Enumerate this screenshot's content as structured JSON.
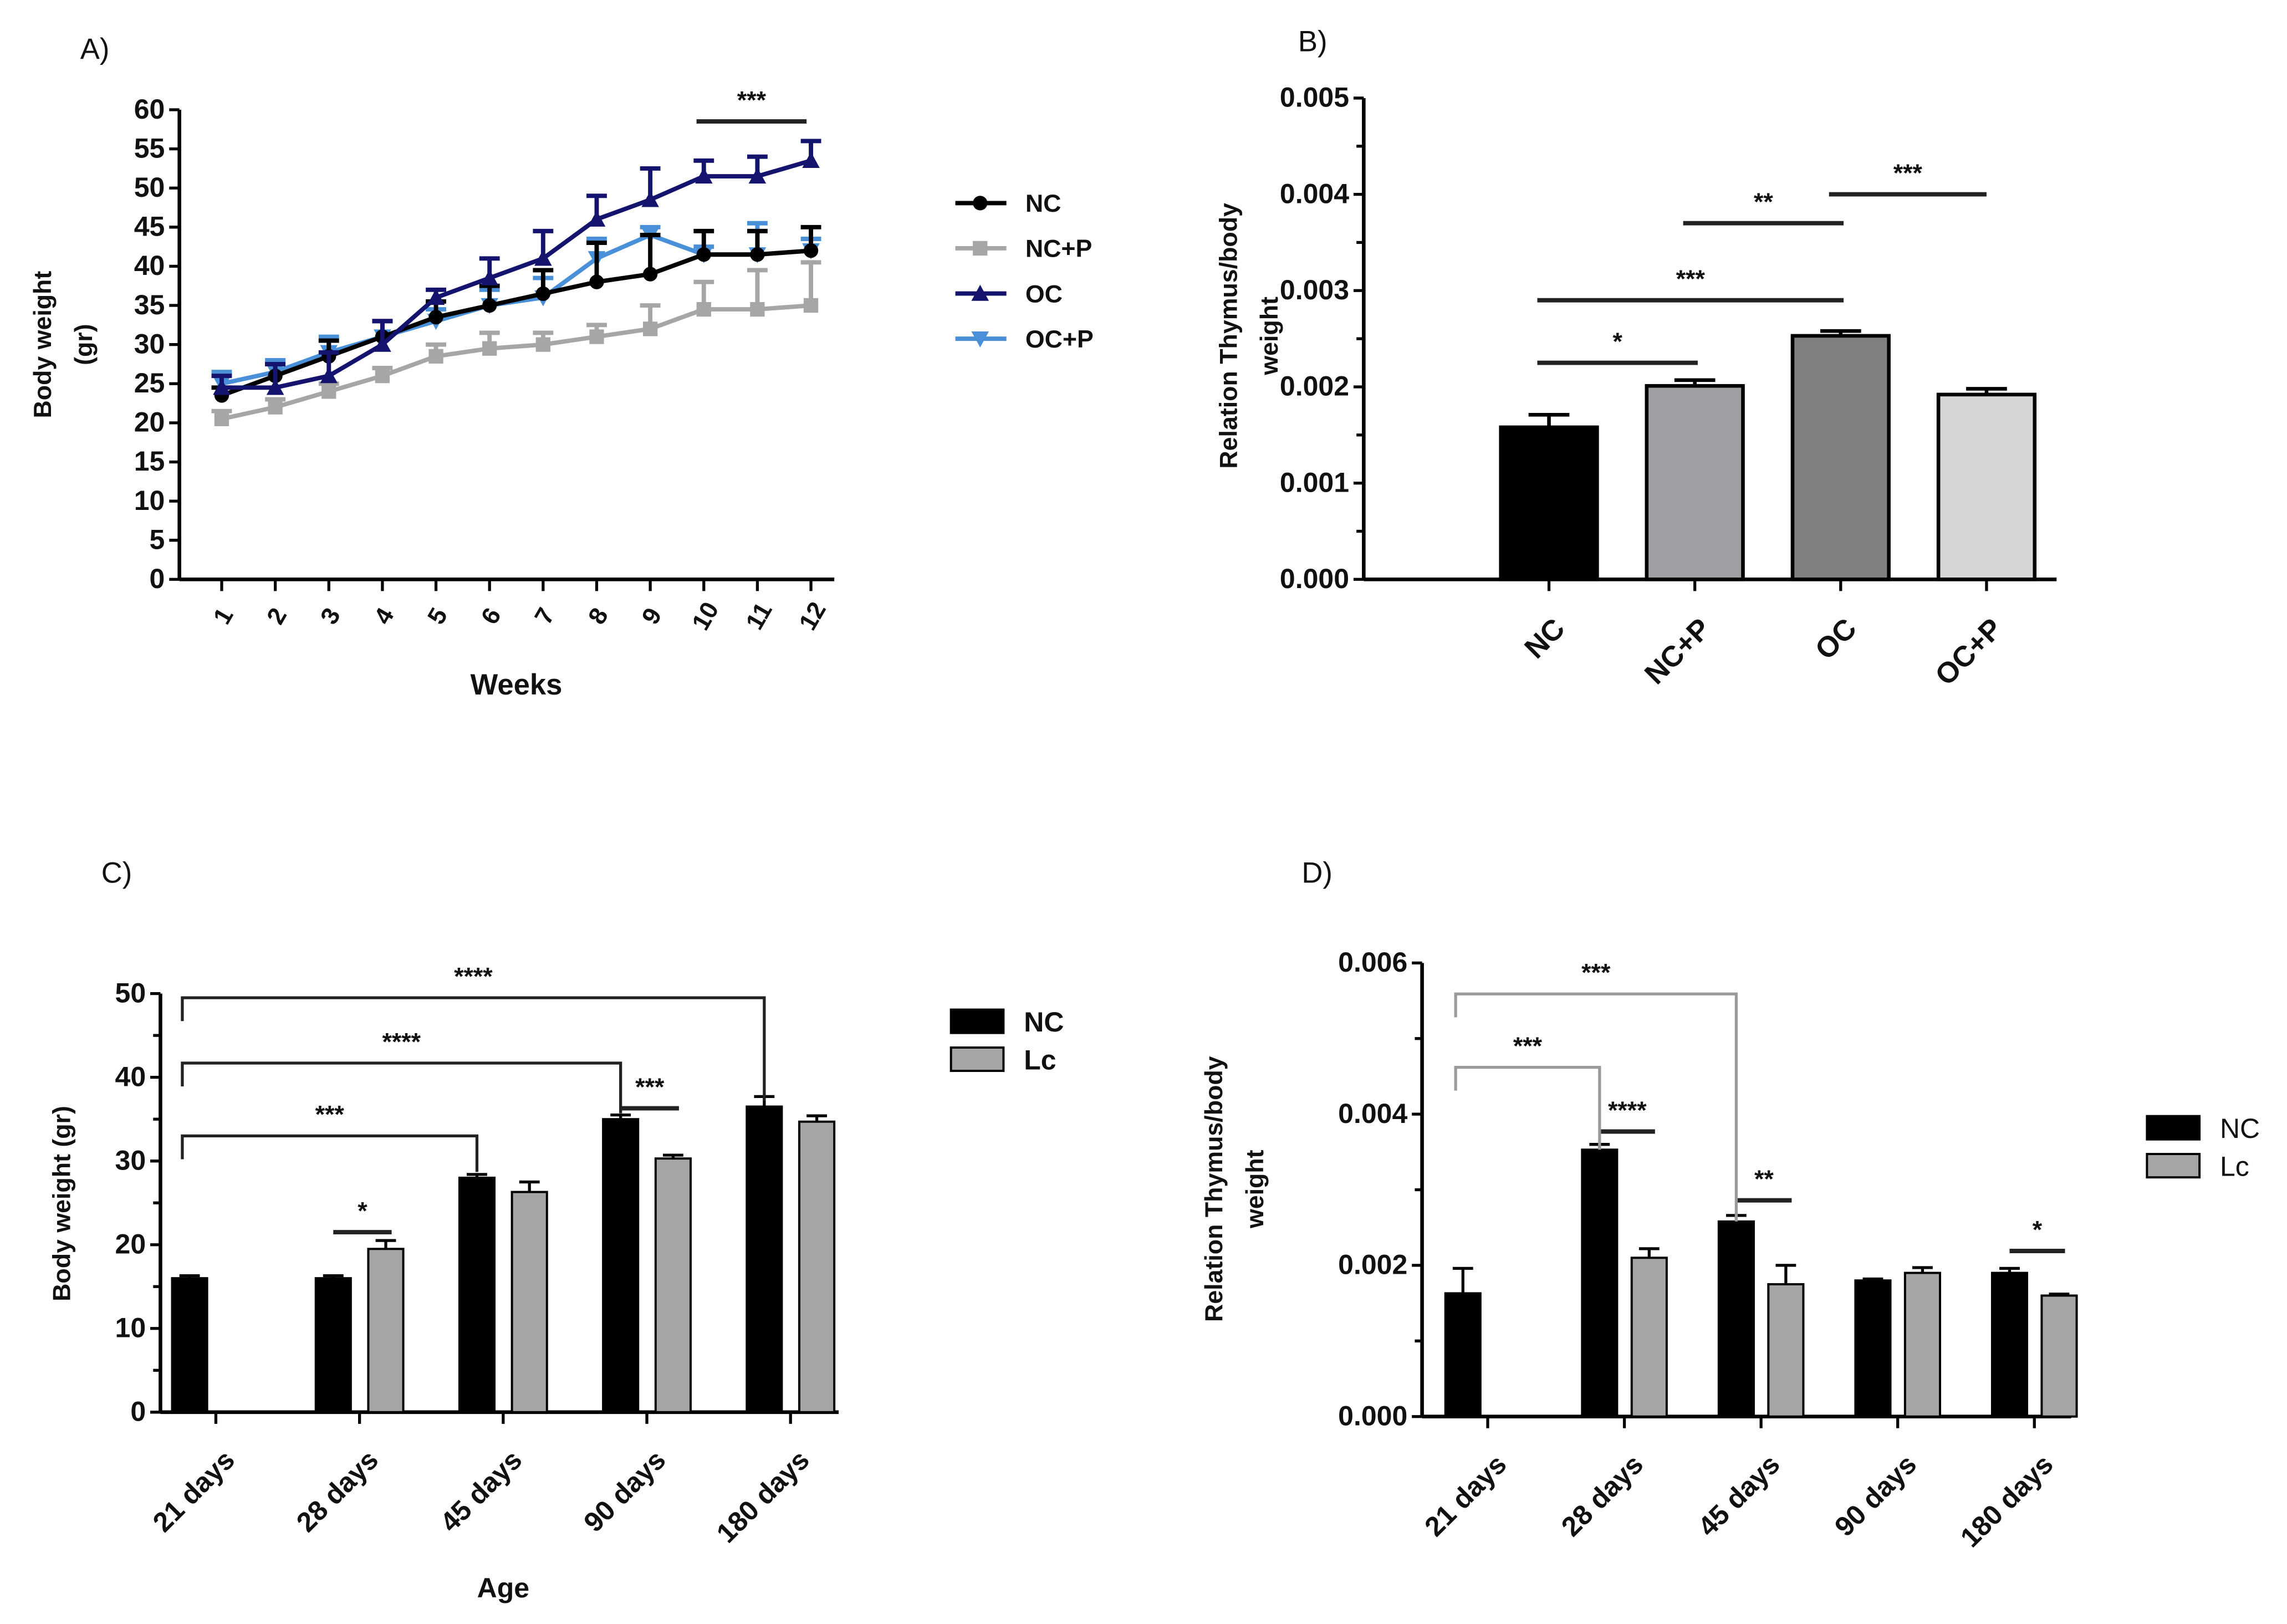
{
  "chart_data": [
    {
      "panel": "A)",
      "type": "line",
      "xlabel": "Weeks",
      "ylabel": [
        "Body weight",
        "(gr)"
      ],
      "x": [
        1,
        2,
        3,
        4,
        5,
        6,
        7,
        8,
        9,
        10,
        11,
        12
      ],
      "xticks": [
        "1",
        "2",
        "3",
        "4",
        "5",
        "6",
        "7",
        "8",
        "9",
        "10",
        "11",
        "12"
      ],
      "ylim": [
        0,
        60
      ],
      "yticks": [
        "0",
        "5",
        "10",
        "15",
        "20",
        "25",
        "30",
        "35",
        "40",
        "45",
        "50",
        "55",
        "60"
      ],
      "legend_position": "right",
      "series": [
        {
          "name": "NC",
          "color": "#000000",
          "marker": "circle",
          "values": [
            23.5,
            26,
            28.5,
            31,
            33.5,
            35,
            36.5,
            38,
            39,
            41.5,
            41.5,
            42
          ],
          "errors": [
            1,
            1.5,
            2,
            2,
            2,
            2.5,
            3,
            5,
            5,
            3,
            3,
            3
          ]
        },
        {
          "name": "NC+P",
          "color": "#a6a6a6",
          "marker": "square",
          "values": [
            20.5,
            22,
            24,
            26,
            28.5,
            29.5,
            30,
            31,
            32,
            34.5,
            34.5,
            35
          ],
          "errors": [
            1,
            1,
            1,
            1,
            1.5,
            2,
            1.5,
            1.5,
            3,
            3.5,
            5,
            5.5
          ]
        },
        {
          "name": "OC",
          "color": "#14146e",
          "marker": "triangle-up",
          "values": [
            24.5,
            24.5,
            26,
            30,
            36,
            38.5,
            41,
            46,
            48.5,
            51.5,
            51.5,
            53.5
          ],
          "errors": [
            1.5,
            3,
            3,
            3,
            1,
            2.5,
            3.5,
            3,
            4,
            2,
            2.5,
            2.5
          ]
        },
        {
          "name": "OC+P",
          "color": "#4a90d9",
          "marker": "triangle-down",
          "values": [
            25,
            26.5,
            29,
            31,
            33,
            35,
            36,
            41,
            44,
            41.5,
            41.5,
            42
          ],
          "errors": [
            1.5,
            1.5,
            2,
            2,
            1.5,
            2,
            2.5,
            2.5,
            1,
            1,
            4,
            1.5
          ]
        }
      ],
      "annotations": [
        {
          "label": "***",
          "from": 10,
          "to": 12
        }
      ]
    },
    {
      "panel": "B)",
      "type": "bar",
      "ylabel": [
        "Relation Thymus/body",
        "weight"
      ],
      "categories": [
        "NC",
        "NC+P",
        "OC",
        "OC+P"
      ],
      "values": [
        0.00158,
        0.00201,
        0.00253,
        0.00192
      ],
      "errors": [
        0.00013,
        6e-05,
        5e-05,
        6e-05
      ],
      "colors": [
        "#000000",
        "#a0a0a4",
        "#808080",
        "#d6d6d6"
      ],
      "ylim": [
        0,
        0.005
      ],
      "yticks": [
        "0.000",
        "0.001",
        "0.002",
        "0.003",
        "0.004",
        "0.005"
      ],
      "annotations": [
        {
          "label": "*",
          "from": 0,
          "to": 1,
          "level": 0.00225
        },
        {
          "label": "***",
          "from": 0,
          "to": 2,
          "level": 0.0029
        },
        {
          "label": "**",
          "from": 1,
          "to": 2,
          "level": 0.0037
        },
        {
          "label": "***",
          "from": 2,
          "to": 3,
          "level": 0.004
        }
      ]
    },
    {
      "panel": "C)",
      "type": "bar",
      "xlabel": "Age",
      "ylabel": [
        "Body weight (gr)"
      ],
      "categories": [
        "21 days",
        "28 days",
        "45 days",
        "90 days",
        "180 days"
      ],
      "ylim": [
        0,
        50
      ],
      "yticks": [
        "0",
        "10",
        "20",
        "30",
        "40",
        "50"
      ],
      "legend_position": "right",
      "series": [
        {
          "name": "NC",
          "color": "#000000",
          "values": [
            16,
            16,
            28,
            35,
            36.5
          ],
          "errors": [
            0.3,
            0.3,
            0.4,
            0.5,
            1.2
          ]
        },
        {
          "name": "Lc",
          "color": "#a6a6a6",
          "values": [
            null,
            19.5,
            26.3,
            30.3,
            34.7
          ],
          "errors": [
            null,
            1,
            1.2,
            0.4,
            0.7
          ]
        }
      ],
      "annotations": [
        {
          "label": "*",
          "from": [
            1,
            0
          ],
          "to": [
            1,
            1
          ],
          "level": 21.5,
          "kind": "line"
        },
        {
          "label": "***",
          "from": [
            3,
            0
          ],
          "to": [
            3,
            1
          ],
          "level": 36.3,
          "kind": "line"
        },
        {
          "label": "***",
          "from": [
            0,
            0
          ],
          "to": [
            2,
            0
          ],
          "level": 33,
          "kind": "bracket"
        },
        {
          "label": "****",
          "from": [
            0,
            0
          ],
          "to": [
            3,
            0
          ],
          "level": 41.7,
          "kind": "bracket"
        },
        {
          "label": "****",
          "from": [
            0,
            0
          ],
          "to": [
            4,
            0
          ],
          "level": 49.5,
          "kind": "bracket"
        }
      ]
    },
    {
      "panel": "D)",
      "type": "bar",
      "ylabel": [
        "Relation Thymus/body",
        "weight"
      ],
      "categories": [
        "21 days",
        "28 days",
        "45 days",
        "90 days",
        "180 days"
      ],
      "ylim": [
        0,
        0.006
      ],
      "yticks": [
        "0.000",
        "0.002",
        "0.004",
        "0.006"
      ],
      "legend_position": "right",
      "series": [
        {
          "name": "NC",
          "color": "#000000",
          "values": [
            0.00163,
            0.00353,
            0.00258,
            0.0018,
            0.0019
          ],
          "errors": [
            0.00033,
            7e-05,
            8e-05,
            2e-05,
            6e-05
          ]
        },
        {
          "name": "Lc",
          "color": "#a6a6a6",
          "values": [
            null,
            0.0021,
            0.00175,
            0.0019,
            0.0016
          ],
          "errors": [
            null,
            0.00012,
            0.00025,
            7e-05,
            2e-05
          ]
        }
      ],
      "annotations": [
        {
          "label": "****",
          "from": [
            1,
            0
          ],
          "to": [
            1,
            1
          ],
          "level": 0.00377,
          "kind": "line"
        },
        {
          "label": "**",
          "from": [
            2,
            0
          ],
          "to": [
            2,
            1
          ],
          "level": 0.00286,
          "kind": "line"
        },
        {
          "label": "*",
          "from": [
            4,
            0
          ],
          "to": [
            4,
            1
          ],
          "level": 0.00219,
          "kind": "line"
        },
        {
          "label": "***",
          "from": [
            0,
            0
          ],
          "to": [
            1,
            0
          ],
          "level": 0.00462,
          "kind": "bracket",
          "color": "#9a9a9a"
        },
        {
          "label": "***",
          "from": [
            0,
            0
          ],
          "to": [
            2,
            0
          ],
          "level": 0.00559,
          "kind": "bracket",
          "color": "#9a9a9a"
        }
      ]
    }
  ]
}
